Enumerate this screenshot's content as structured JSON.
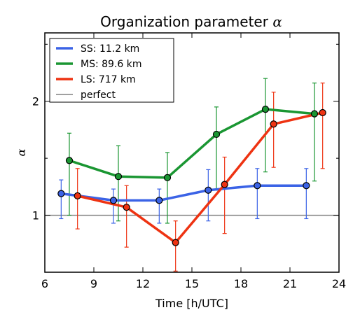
{
  "chart_data": {
    "type": "line",
    "title": "Organization parameter",
    "title_symbol": "α",
    "xlabel": "Time [h/UTC]",
    "ylabel": "α",
    "xlim": [
      6,
      24
    ],
    "ylim": [
      0.5,
      2.6
    ],
    "xticks": [
      6,
      9,
      12,
      15,
      18,
      21,
      24
    ],
    "yticks": [
      1,
      2
    ],
    "yticks_minor": [
      0.5,
      1.5,
      2.5
    ],
    "grid": false,
    "legend": "top-left",
    "reference_line": {
      "name": "perfect",
      "y": 1.0,
      "color": "#808080"
    },
    "series": [
      {
        "name": "SS: 11.2 km",
        "color": "#3b63e6",
        "points": [
          {
            "x": 7.0,
            "y": 1.19,
            "err_low": 0.97,
            "err_high": 1.31
          },
          {
            "x": 10.2,
            "y": 1.13,
            "err_low": 0.93,
            "err_high": 1.23
          },
          {
            "x": 13.0,
            "y": 1.13,
            "err_low": 0.93,
            "err_high": 1.23
          },
          {
            "x": 16.0,
            "y": 1.22,
            "err_low": 0.95,
            "err_high": 1.4
          },
          {
            "x": 19.0,
            "y": 1.26,
            "err_low": 0.97,
            "err_high": 1.41
          },
          {
            "x": 22.0,
            "y": 1.26,
            "err_low": 0.97,
            "err_high": 1.41
          }
        ],
        "line": [
          [
            7.0,
            1.19
          ],
          [
            10.2,
            1.13
          ],
          [
            13.0,
            1.13
          ],
          [
            16.0,
            1.22
          ],
          [
            19.0,
            1.26
          ],
          [
            22.0,
            1.26
          ]
        ]
      },
      {
        "name": "MS: 89.6 km",
        "color": "#1a9632",
        "points": [
          {
            "x": 7.5,
            "y": 1.48,
            "err_low": 1.0,
            "err_high": 1.72
          },
          {
            "x": 10.5,
            "y": 1.34,
            "err_low": 0.95,
            "err_high": 1.61
          },
          {
            "x": 13.5,
            "y": 1.33,
            "err_low": 0.93,
            "err_high": 1.55
          },
          {
            "x": 16.5,
            "y": 1.71,
            "err_low": 1.22,
            "err_high": 1.95
          },
          {
            "x": 19.5,
            "y": 1.93,
            "err_low": 1.38,
            "err_high": 2.2
          },
          {
            "x": 22.5,
            "y": 1.89,
            "err_low": 1.3,
            "err_high": 2.16
          }
        ],
        "line": [
          [
            7.5,
            1.48
          ],
          [
            10.5,
            1.34
          ],
          [
            13.5,
            1.33
          ],
          [
            16.5,
            1.71
          ],
          [
            19.5,
            1.93
          ],
          [
            22.5,
            1.89
          ]
        ]
      },
      {
        "name": "LS: 717 km",
        "color": "#ee3312",
        "points": [
          {
            "x": 8.0,
            "y": 1.17,
            "err_low": 0.88,
            "err_high": 1.41
          },
          {
            "x": 11.0,
            "y": 1.07,
            "err_low": 0.72,
            "err_high": 1.26
          },
          {
            "x": 14.0,
            "y": 0.76,
            "err_low": 0.51,
            "err_high": 0.95
          },
          {
            "x": 17.0,
            "y": 1.27,
            "err_low": 0.84,
            "err_high": 1.51
          },
          {
            "x": 20.0,
            "y": 1.8,
            "err_low": 1.42,
            "err_high": 2.08
          },
          {
            "x": 23.0,
            "y": 1.9,
            "err_low": 1.41,
            "err_high": 2.16
          }
        ],
        "line": [
          [
            8.0,
            1.17
          ],
          [
            11.0,
            1.07
          ],
          [
            14.0,
            0.76
          ],
          [
            17.0,
            1.27
          ],
          [
            20.0,
            1.8
          ],
          [
            23.0,
            1.9
          ]
        ]
      }
    ]
  }
}
